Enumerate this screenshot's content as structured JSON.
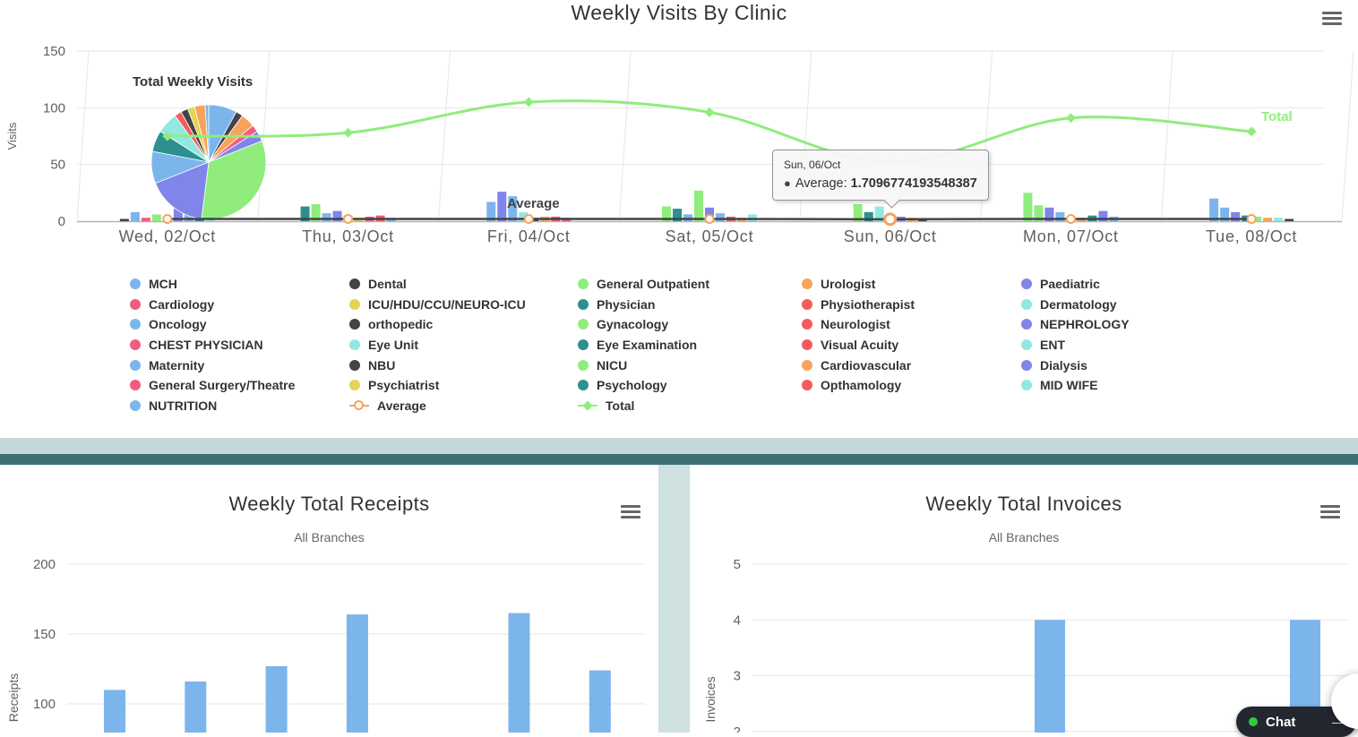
{
  "page": {
    "background": "#ffffff",
    "section_background": "#cfe0e1",
    "divider_light_color": "#c6d7d9",
    "divider_dark_color": "#3d6e75"
  },
  "chat": {
    "label": "Chat",
    "online_dot_color": "#2ecc40",
    "minimize_glyph": "—"
  },
  "icons": {
    "chart_menu": "hamburger-menu-icon",
    "chat_status": "green-online-dot"
  },
  "chart_data": [
    {
      "type": "column+spline+pie",
      "title": "Weekly Visits By Clinic",
      "ylabel": "Visits",
      "ylim": [
        0,
        150
      ],
      "yticks": [
        0,
        50,
        100,
        150
      ],
      "grid": true,
      "legend_position": "bottom",
      "categories": [
        "Wed, 02/Oct",
        "Thu, 03/Oct",
        "Fri, 04/Oct",
        "Sat, 05/Oct",
        "Sun, 06/Oct",
        "Mon, 07/Oct",
        "Tue, 08/Oct"
      ],
      "series": [
        {
          "name": "Total",
          "type": "spline",
          "color": "#90ed7d",
          "marker": "diamond",
          "values": [
            75,
            78,
            105,
            96,
            52,
            91,
            79
          ],
          "label": "Total"
        },
        {
          "name": "Average",
          "type": "line",
          "color": "#434348",
          "marker": "circle",
          "marker_ring_color": "#f7a35c",
          "values": [
            2,
            2,
            2,
            2,
            1.7096774193548387,
            2,
            2
          ],
          "label": "Average"
        }
      ],
      "clusters": [
        [
          {
            "c": "#434348",
            "v": 2
          },
          {
            "c": "#7cb5ec",
            "v": 8
          },
          {
            "c": "#f15c80",
            "v": 3
          },
          {
            "c": "#90ed7d",
            "v": 6
          },
          {
            "c": "#f7a35c",
            "v": 4
          },
          {
            "c": "#8085e9",
            "v": 11
          },
          {
            "c": "#7cb5ec",
            "v": 6
          },
          {
            "c": "#2b908f",
            "v": 4
          },
          {
            "c": "#91e8e1",
            "v": 3
          }
        ],
        [
          {
            "c": "#2b908f",
            "v": 13
          },
          {
            "c": "#90ed7d",
            "v": 15
          },
          {
            "c": "#7cb5ec",
            "v": 7
          },
          {
            "c": "#8085e9",
            "v": 9
          },
          {
            "c": "#f7a35c",
            "v": 5
          },
          {
            "c": "#e4d354",
            "v": 3
          },
          {
            "c": "#f15c80",
            "v": 4
          },
          {
            "c": "#f45b5b",
            "v": 5
          },
          {
            "c": "#7cb5ec",
            "v": 3
          }
        ],
        [
          {
            "c": "#7cb5ec",
            "v": 17
          },
          {
            "c": "#8085e9",
            "v": 26
          },
          {
            "c": "#7cb5ec",
            "v": 22
          },
          {
            "c": "#91e8e1",
            "v": 8
          },
          {
            "c": "#434348",
            "v": 3
          },
          {
            "c": "#f7a35c",
            "v": 4
          },
          {
            "c": "#f45b5b",
            "v": 4
          },
          {
            "c": "#f15c80",
            "v": 3
          }
        ],
        [
          {
            "c": "#90ed7d",
            "v": 13
          },
          {
            "c": "#2b908f",
            "v": 11
          },
          {
            "c": "#7cb5ec",
            "v": 6
          },
          {
            "c": "#90ed7d",
            "v": 27
          },
          {
            "c": "#8085e9",
            "v": 12
          },
          {
            "c": "#7cb5ec",
            "v": 7
          },
          {
            "c": "#f45b5b",
            "v": 4
          },
          {
            "c": "#f7a35c",
            "v": 3
          },
          {
            "c": "#91e8e1",
            "v": 6
          }
        ],
        [
          {
            "c": "#90ed7d",
            "v": 15
          },
          {
            "c": "#2b908f",
            "v": 8
          },
          {
            "c": "#91e8e1",
            "v": 13
          },
          {
            "c": "#7cb5ec",
            "v": 5
          },
          {
            "c": "#8085e9",
            "v": 4
          },
          {
            "c": "#f7a35c",
            "v": 3
          },
          {
            "c": "#434348",
            "v": 2
          }
        ],
        [
          {
            "c": "#90ed7d",
            "v": 25
          },
          {
            "c": "#90ed7d",
            "v": 14
          },
          {
            "c": "#8085e9",
            "v": 12
          },
          {
            "c": "#7cb5ec",
            "v": 8
          },
          {
            "c": "#f45b5b",
            "v": 3
          },
          {
            "c": "#f7a35c",
            "v": 3
          },
          {
            "c": "#2b908f",
            "v": 5
          },
          {
            "c": "#8085e9",
            "v": 9
          },
          {
            "c": "#7cb5ec",
            "v": 4
          }
        ],
        [
          {
            "c": "#7cb5ec",
            "v": 20
          },
          {
            "c": "#7cb5ec",
            "v": 12
          },
          {
            "c": "#8085e9",
            "v": 8
          },
          {
            "c": "#2b908f",
            "v": 5
          },
          {
            "c": "#90ed7d",
            "v": 4
          },
          {
            "c": "#f7a35c",
            "v": 3
          },
          {
            "c": "#91e8e1",
            "v": 3
          },
          {
            "c": "#434348",
            "v": 2
          }
        ]
      ],
      "pie": {
        "label": "Total Weekly Visits",
        "slices": [
          {
            "color": "#7cb5ec",
            "v": 8
          },
          {
            "color": "#434348",
            "v": 2
          },
          {
            "color": "#f7a35c",
            "v": 4
          },
          {
            "color": "#f15c80",
            "v": 2
          },
          {
            "color": "#8085e9",
            "v": 3
          },
          {
            "color": "#90ed7d",
            "v": 33
          },
          {
            "color": "#8085e9",
            "v": 17
          },
          {
            "color": "#7cb5ec",
            "v": 9
          },
          {
            "color": "#2b908f",
            "v": 6
          },
          {
            "color": "#91e8e1",
            "v": 6
          },
          {
            "color": "#f45b5b",
            "v": 2
          },
          {
            "color": "#434348",
            "v": 2
          },
          {
            "color": "#e4d354",
            "v": 2
          },
          {
            "color": "#f7a35c",
            "v": 3
          },
          {
            "color": "#7cb5ec",
            "v": 1
          }
        ]
      },
      "tooltip": {
        "header": "Sun, 06/Oct",
        "bullet": "●",
        "series_label": "Average:",
        "value": "1.7096774193548387",
        "category_index": 4
      },
      "legend": [
        {
          "label": "MCH",
          "color": "#7cb5ec",
          "marker": "circle"
        },
        {
          "label": "Dental",
          "color": "#434348",
          "marker": "circle"
        },
        {
          "label": "General Outpatient",
          "color": "#90ed7d",
          "marker": "circle"
        },
        {
          "label": "Urologist",
          "color": "#f7a35c",
          "marker": "circle"
        },
        {
          "label": "Paediatric",
          "color": "#8085e9",
          "marker": "circle"
        },
        {
          "label": "Cardiology",
          "color": "#f15c80",
          "marker": "circle"
        },
        {
          "label": "ICU/HDU/CCU/NEURO-ICU",
          "color": "#e4d354",
          "marker": "circle"
        },
        {
          "label": "Physician",
          "color": "#2b908f",
          "marker": "circle"
        },
        {
          "label": "Physiotherapist",
          "color": "#f45b5b",
          "marker": "circle"
        },
        {
          "label": "Dermatology",
          "color": "#91e8e1",
          "marker": "circle"
        },
        {
          "label": "Oncology",
          "color": "#7cb5ec",
          "marker": "circle"
        },
        {
          "label": "orthopedic",
          "color": "#434348",
          "marker": "circle"
        },
        {
          "label": "Gynacology",
          "color": "#90ed7d",
          "marker": "circle"
        },
        {
          "label": "Neurologist",
          "color": "#f45b5b",
          "marker": "circle"
        },
        {
          "label": "NEPHROLOGY",
          "color": "#8085e9",
          "marker": "circle"
        },
        {
          "label": "CHEST PHYSICIAN",
          "color": "#f15c80",
          "marker": "circle"
        },
        {
          "label": "Eye Unit",
          "color": "#91e8e1",
          "marker": "circle"
        },
        {
          "label": "Eye Examination",
          "color": "#2b908f",
          "marker": "circle"
        },
        {
          "label": "Visual Acuity",
          "color": "#f45b5b",
          "marker": "circle"
        },
        {
          "label": "ENT",
          "color": "#91e8e1",
          "marker": "circle"
        },
        {
          "label": "Maternity",
          "color": "#7cb5ec",
          "marker": "circle"
        },
        {
          "label": "NBU",
          "color": "#434348",
          "marker": "circle"
        },
        {
          "label": "NICU",
          "color": "#90ed7d",
          "marker": "circle"
        },
        {
          "label": "Cardiovascular",
          "color": "#f7a35c",
          "marker": "circle"
        },
        {
          "label": "Dialysis",
          "color": "#8085e9",
          "marker": "circle"
        },
        {
          "label": "General Surgery/Theatre",
          "color": "#f15c80",
          "marker": "circle"
        },
        {
          "label": "Psychiatrist",
          "color": "#e4d354",
          "marker": "circle"
        },
        {
          "label": "Psychology",
          "color": "#2b908f",
          "marker": "circle"
        },
        {
          "label": "Opthamology",
          "color": "#f45b5b",
          "marker": "circle"
        },
        {
          "label": "MID WIFE",
          "color": "#91e8e1",
          "marker": "circle"
        },
        {
          "label": "NUTRITION",
          "color": "#7cb5ec",
          "marker": "circle"
        },
        {
          "label": "Average",
          "color": "#f7a35c",
          "marker": "line-circle"
        },
        {
          "label": "Total",
          "color": "#90ed7d",
          "marker": "line-diamond"
        }
      ]
    },
    {
      "type": "bar",
      "title": "Weekly Total Receipts",
      "subtitle": "All Branches",
      "ylabel": "Receipts",
      "yticks": [
        100,
        150,
        200
      ],
      "bar_color": "#7cb5ec",
      "values": [
        110,
        116,
        127,
        164,
        0,
        165,
        124
      ]
    },
    {
      "type": "bar",
      "title": "Weekly Total Invoices",
      "subtitle": "All Branches",
      "ylabel": "Invoices",
      "yticks": [
        2,
        3,
        4,
        5
      ],
      "bar_color": "#7cb5ec",
      "values": [
        0,
        0,
        0,
        4,
        0,
        0,
        4
      ]
    }
  ]
}
